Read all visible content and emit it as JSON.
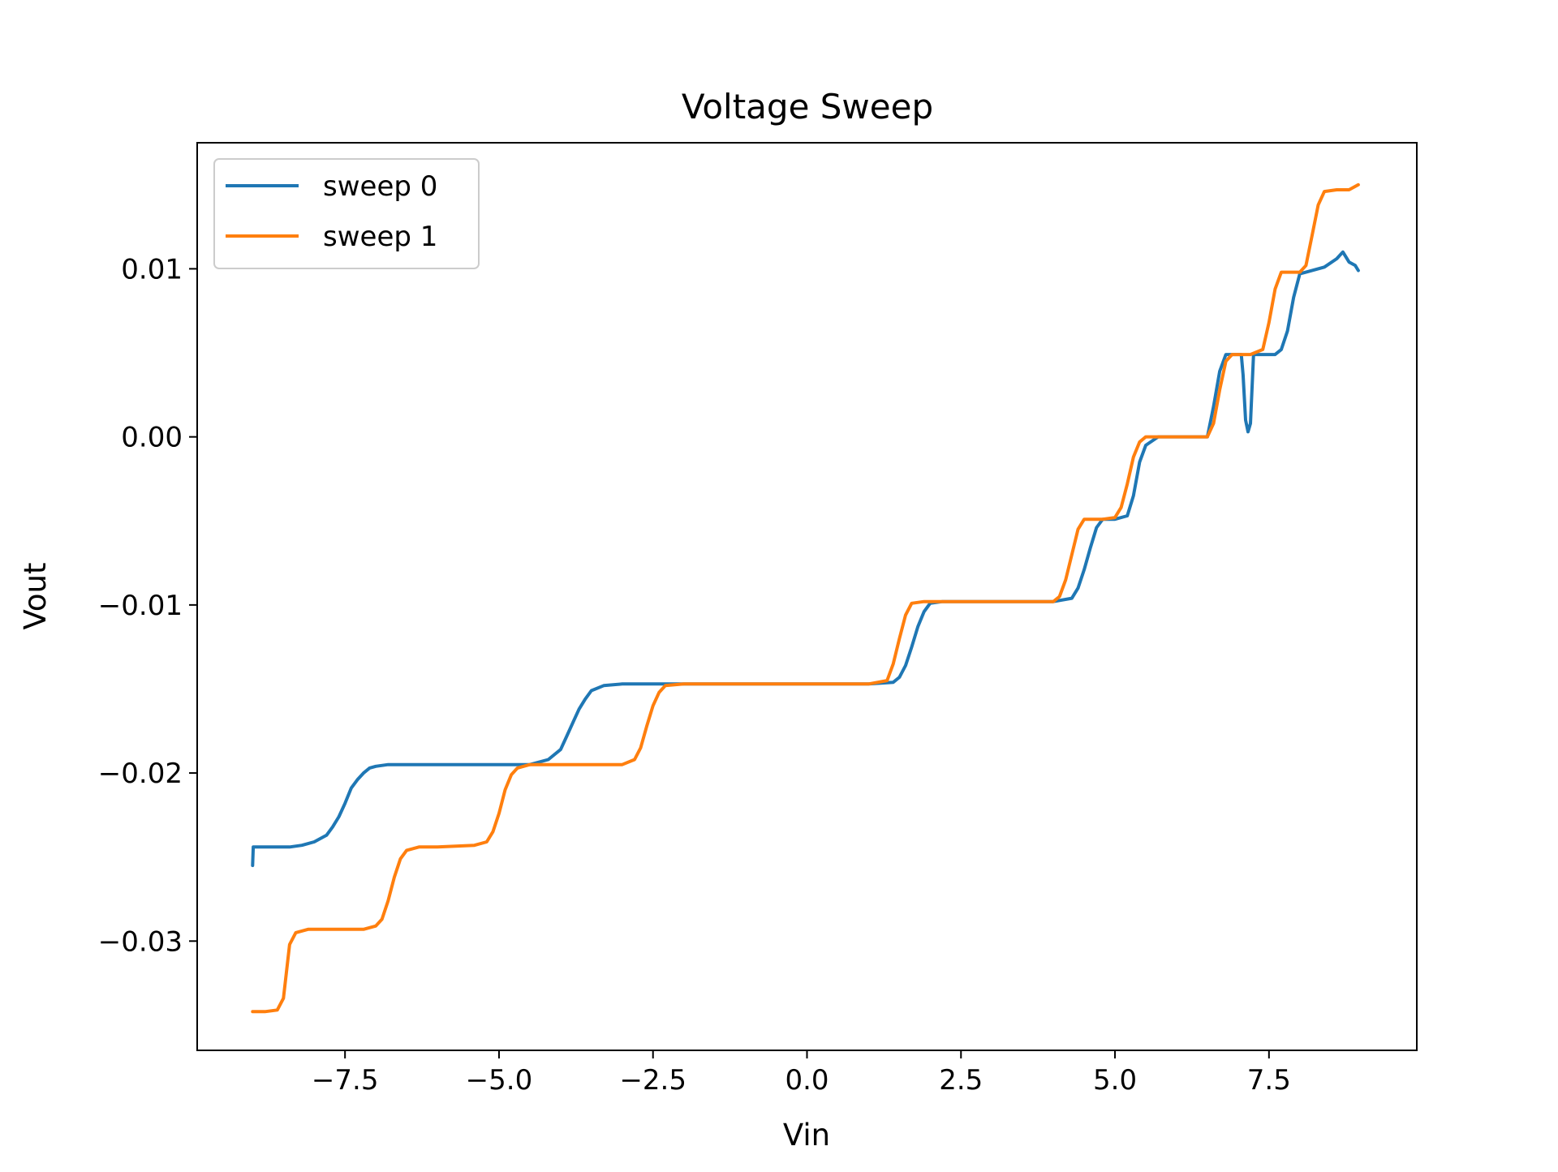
{
  "chart_data": {
    "type": "line",
    "title": "Voltage Sweep",
    "xlabel": "Vin",
    "ylabel": "Vout",
    "xlim": [
      -9.9,
      9.9
    ],
    "ylim": [
      -0.0365,
      0.0175
    ],
    "xticks": [
      -7.5,
      -5.0,
      -2.5,
      0.0,
      2.5,
      5.0,
      7.5
    ],
    "xtick_labels": [
      "−7.5",
      "−5.0",
      "−2.5",
      "0.0",
      "2.5",
      "5.0",
      "7.5"
    ],
    "yticks": [
      -0.03,
      -0.02,
      -0.01,
      0.0,
      0.01
    ],
    "ytick_labels": [
      "−0.03",
      "−0.02",
      "−0.01",
      "0.00",
      "0.01"
    ],
    "grid": false,
    "legend": {
      "position": "top-left"
    },
    "series": [
      {
        "name": "sweep 0",
        "color": "#1f77b4",
        "points": [
          [
            -9.0,
            -0.0255
          ],
          [
            -8.99,
            -0.0244
          ],
          [
            -8.7,
            -0.0244
          ],
          [
            -8.4,
            -0.0244
          ],
          [
            -8.2,
            -0.0243
          ],
          [
            -8.0,
            -0.0241
          ],
          [
            -7.8,
            -0.0237
          ],
          [
            -7.7,
            -0.0232
          ],
          [
            -7.6,
            -0.0226
          ],
          [
            -7.5,
            -0.0218
          ],
          [
            -7.4,
            -0.0209
          ],
          [
            -7.3,
            -0.0204
          ],
          [
            -7.2,
            -0.02
          ],
          [
            -7.1,
            -0.0197
          ],
          [
            -7.0,
            -0.0196
          ],
          [
            -6.8,
            -0.0195
          ],
          [
            -6.0,
            -0.0195
          ],
          [
            -5.0,
            -0.0195
          ],
          [
            -4.5,
            -0.0195
          ],
          [
            -4.2,
            -0.0192
          ],
          [
            -4.0,
            -0.0186
          ],
          [
            -3.9,
            -0.0178
          ],
          [
            -3.8,
            -0.017
          ],
          [
            -3.7,
            -0.0162
          ],
          [
            -3.6,
            -0.0156
          ],
          [
            -3.5,
            -0.0151
          ],
          [
            -3.3,
            -0.0148
          ],
          [
            -3.0,
            -0.0147
          ],
          [
            -2.0,
            -0.0147
          ],
          [
            0.0,
            -0.0147
          ],
          [
            1.0,
            -0.0147
          ],
          [
            1.4,
            -0.0146
          ],
          [
            1.5,
            -0.0143
          ],
          [
            1.6,
            -0.0136
          ],
          [
            1.7,
            -0.0125
          ],
          [
            1.8,
            -0.0113
          ],
          [
            1.9,
            -0.0104
          ],
          [
            2.0,
            -0.0099
          ],
          [
            2.2,
            -0.0098
          ],
          [
            3.0,
            -0.0098
          ],
          [
            4.0,
            -0.0098
          ],
          [
            4.3,
            -0.0096
          ],
          [
            4.4,
            -0.009
          ],
          [
            4.5,
            -0.0079
          ],
          [
            4.6,
            -0.0066
          ],
          [
            4.7,
            -0.0054
          ],
          [
            4.8,
            -0.0049
          ],
          [
            5.0,
            -0.0049
          ],
          [
            5.2,
            -0.0047
          ],
          [
            5.3,
            -0.0035
          ],
          [
            5.4,
            -0.0015
          ],
          [
            5.5,
            -0.0005
          ],
          [
            5.7,
            0.0
          ],
          [
            6.0,
            0.0
          ],
          [
            6.5,
            0.0
          ],
          [
            6.6,
            0.0018
          ],
          [
            6.7,
            0.0039
          ],
          [
            6.8,
            0.0049
          ],
          [
            7.0,
            0.0049
          ],
          [
            7.05,
            0.0049
          ],
          [
            7.08,
            0.0037
          ],
          [
            7.12,
            0.001
          ],
          [
            7.16,
            0.0003
          ],
          [
            7.2,
            0.0008
          ],
          [
            7.25,
            0.0049
          ],
          [
            7.4,
            0.0049
          ],
          [
            7.6,
            0.0049
          ],
          [
            7.7,
            0.0052
          ],
          [
            7.8,
            0.0063
          ],
          [
            7.9,
            0.0083
          ],
          [
            8.0,
            0.0097
          ],
          [
            8.1,
            0.0098
          ],
          [
            8.4,
            0.0101
          ],
          [
            8.6,
            0.0106
          ],
          [
            8.7,
            0.011
          ],
          [
            8.8,
            0.0104
          ],
          [
            8.9,
            0.0102
          ],
          [
            8.95,
            0.0099
          ]
        ]
      },
      {
        "name": "sweep 1",
        "color": "#ff7f0e",
        "points": [
          [
            -9.0,
            -0.0342
          ],
          [
            -8.8,
            -0.0342
          ],
          [
            -8.6,
            -0.0341
          ],
          [
            -8.5,
            -0.0334
          ],
          [
            -8.45,
            -0.0318
          ],
          [
            -8.4,
            -0.0302
          ],
          [
            -8.3,
            -0.0295
          ],
          [
            -8.1,
            -0.0293
          ],
          [
            -7.6,
            -0.0293
          ],
          [
            -7.2,
            -0.0293
          ],
          [
            -7.0,
            -0.0291
          ],
          [
            -6.9,
            -0.0287
          ],
          [
            -6.8,
            -0.0276
          ],
          [
            -6.7,
            -0.0262
          ],
          [
            -6.6,
            -0.0251
          ],
          [
            -6.5,
            -0.0246
          ],
          [
            -6.3,
            -0.0244
          ],
          [
            -6.0,
            -0.0244
          ],
          [
            -5.4,
            -0.0243
          ],
          [
            -5.2,
            -0.0241
          ],
          [
            -5.1,
            -0.0235
          ],
          [
            -5.0,
            -0.0224
          ],
          [
            -4.9,
            -0.021
          ],
          [
            -4.8,
            -0.0201
          ],
          [
            -4.7,
            -0.0197
          ],
          [
            -4.5,
            -0.0195
          ],
          [
            -3.5,
            -0.0195
          ],
          [
            -3.0,
            -0.0195
          ],
          [
            -2.8,
            -0.0192
          ],
          [
            -2.7,
            -0.0185
          ],
          [
            -2.6,
            -0.0172
          ],
          [
            -2.5,
            -0.016
          ],
          [
            -2.4,
            -0.0152
          ],
          [
            -2.3,
            -0.0148
          ],
          [
            -2.0,
            -0.0147
          ],
          [
            0.0,
            -0.0147
          ],
          [
            1.0,
            -0.0147
          ],
          [
            1.3,
            -0.0145
          ],
          [
            1.4,
            -0.0135
          ],
          [
            1.5,
            -0.012
          ],
          [
            1.6,
            -0.0106
          ],
          [
            1.7,
            -0.0099
          ],
          [
            1.9,
            -0.0098
          ],
          [
            2.5,
            -0.0098
          ],
          [
            3.5,
            -0.0098
          ],
          [
            4.0,
            -0.0098
          ],
          [
            4.1,
            -0.0095
          ],
          [
            4.2,
            -0.0085
          ],
          [
            4.3,
            -0.007
          ],
          [
            4.4,
            -0.0055
          ],
          [
            4.5,
            -0.0049
          ],
          [
            4.8,
            -0.0049
          ],
          [
            5.0,
            -0.0048
          ],
          [
            5.1,
            -0.0042
          ],
          [
            5.2,
            -0.0028
          ],
          [
            5.3,
            -0.0012
          ],
          [
            5.4,
            -0.0003
          ],
          [
            5.5,
            0.0
          ],
          [
            6.0,
            0.0
          ],
          [
            6.5,
            0.0
          ],
          [
            6.6,
            0.0008
          ],
          [
            6.7,
            0.0028
          ],
          [
            6.8,
            0.0045
          ],
          [
            6.9,
            0.0049
          ],
          [
            7.2,
            0.0049
          ],
          [
            7.4,
            0.0052
          ],
          [
            7.5,
            0.0068
          ],
          [
            7.6,
            0.0088
          ],
          [
            7.7,
            0.0098
          ],
          [
            8.0,
            0.0098
          ],
          [
            8.1,
            0.0102
          ],
          [
            8.2,
            0.012
          ],
          [
            8.3,
            0.0138
          ],
          [
            8.4,
            0.0146
          ],
          [
            8.6,
            0.0147
          ],
          [
            8.8,
            0.0147
          ],
          [
            8.95,
            0.015
          ]
        ]
      }
    ]
  }
}
